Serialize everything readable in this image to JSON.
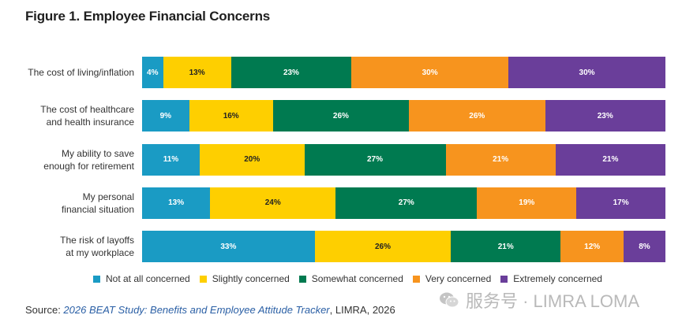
{
  "title": "Figure 1. Employee Financial Concerns",
  "chart_data": {
    "type": "bar",
    "orientation": "horizontal",
    "stacked": true,
    "percent_stacked": true,
    "categories": [
      [
        "The cost of living/inflation"
      ],
      [
        "The cost of healthcare",
        "and health insurance"
      ],
      [
        "My ability to save",
        "enough for retirement"
      ],
      [
        "My personal",
        "financial situation"
      ],
      [
        "The risk of layoffs",
        "at my workplace"
      ]
    ],
    "series": [
      {
        "name": "Not at all concerned",
        "color": "#1a9bc4",
        "values": [
          4,
          9,
          11,
          13,
          33
        ]
      },
      {
        "name": "Slightly concerned",
        "color": "#fecf00",
        "values": [
          13,
          16,
          20,
          24,
          26
        ]
      },
      {
        "name": "Somewhat concerned",
        "color": "#007a50",
        "values": [
          23,
          26,
          27,
          27,
          21
        ]
      },
      {
        "name": "Very concerned",
        "color": "#f7941e",
        "values": [
          30,
          26,
          21,
          19,
          12
        ]
      },
      {
        "name": "Extremely concerned",
        "color": "#6a3e9a",
        "values": [
          30,
          23,
          21,
          17,
          8
        ]
      }
    ],
    "value_suffix": "%",
    "legend": "bottom"
  },
  "source": {
    "prefix": "Source: ",
    "title": "2026 BEAT Study: Benefits and Employee Attitude Tracker",
    "suffix": ", LIMRA, 2026"
  },
  "watermark": "服务号 · LIMRA LOMA"
}
